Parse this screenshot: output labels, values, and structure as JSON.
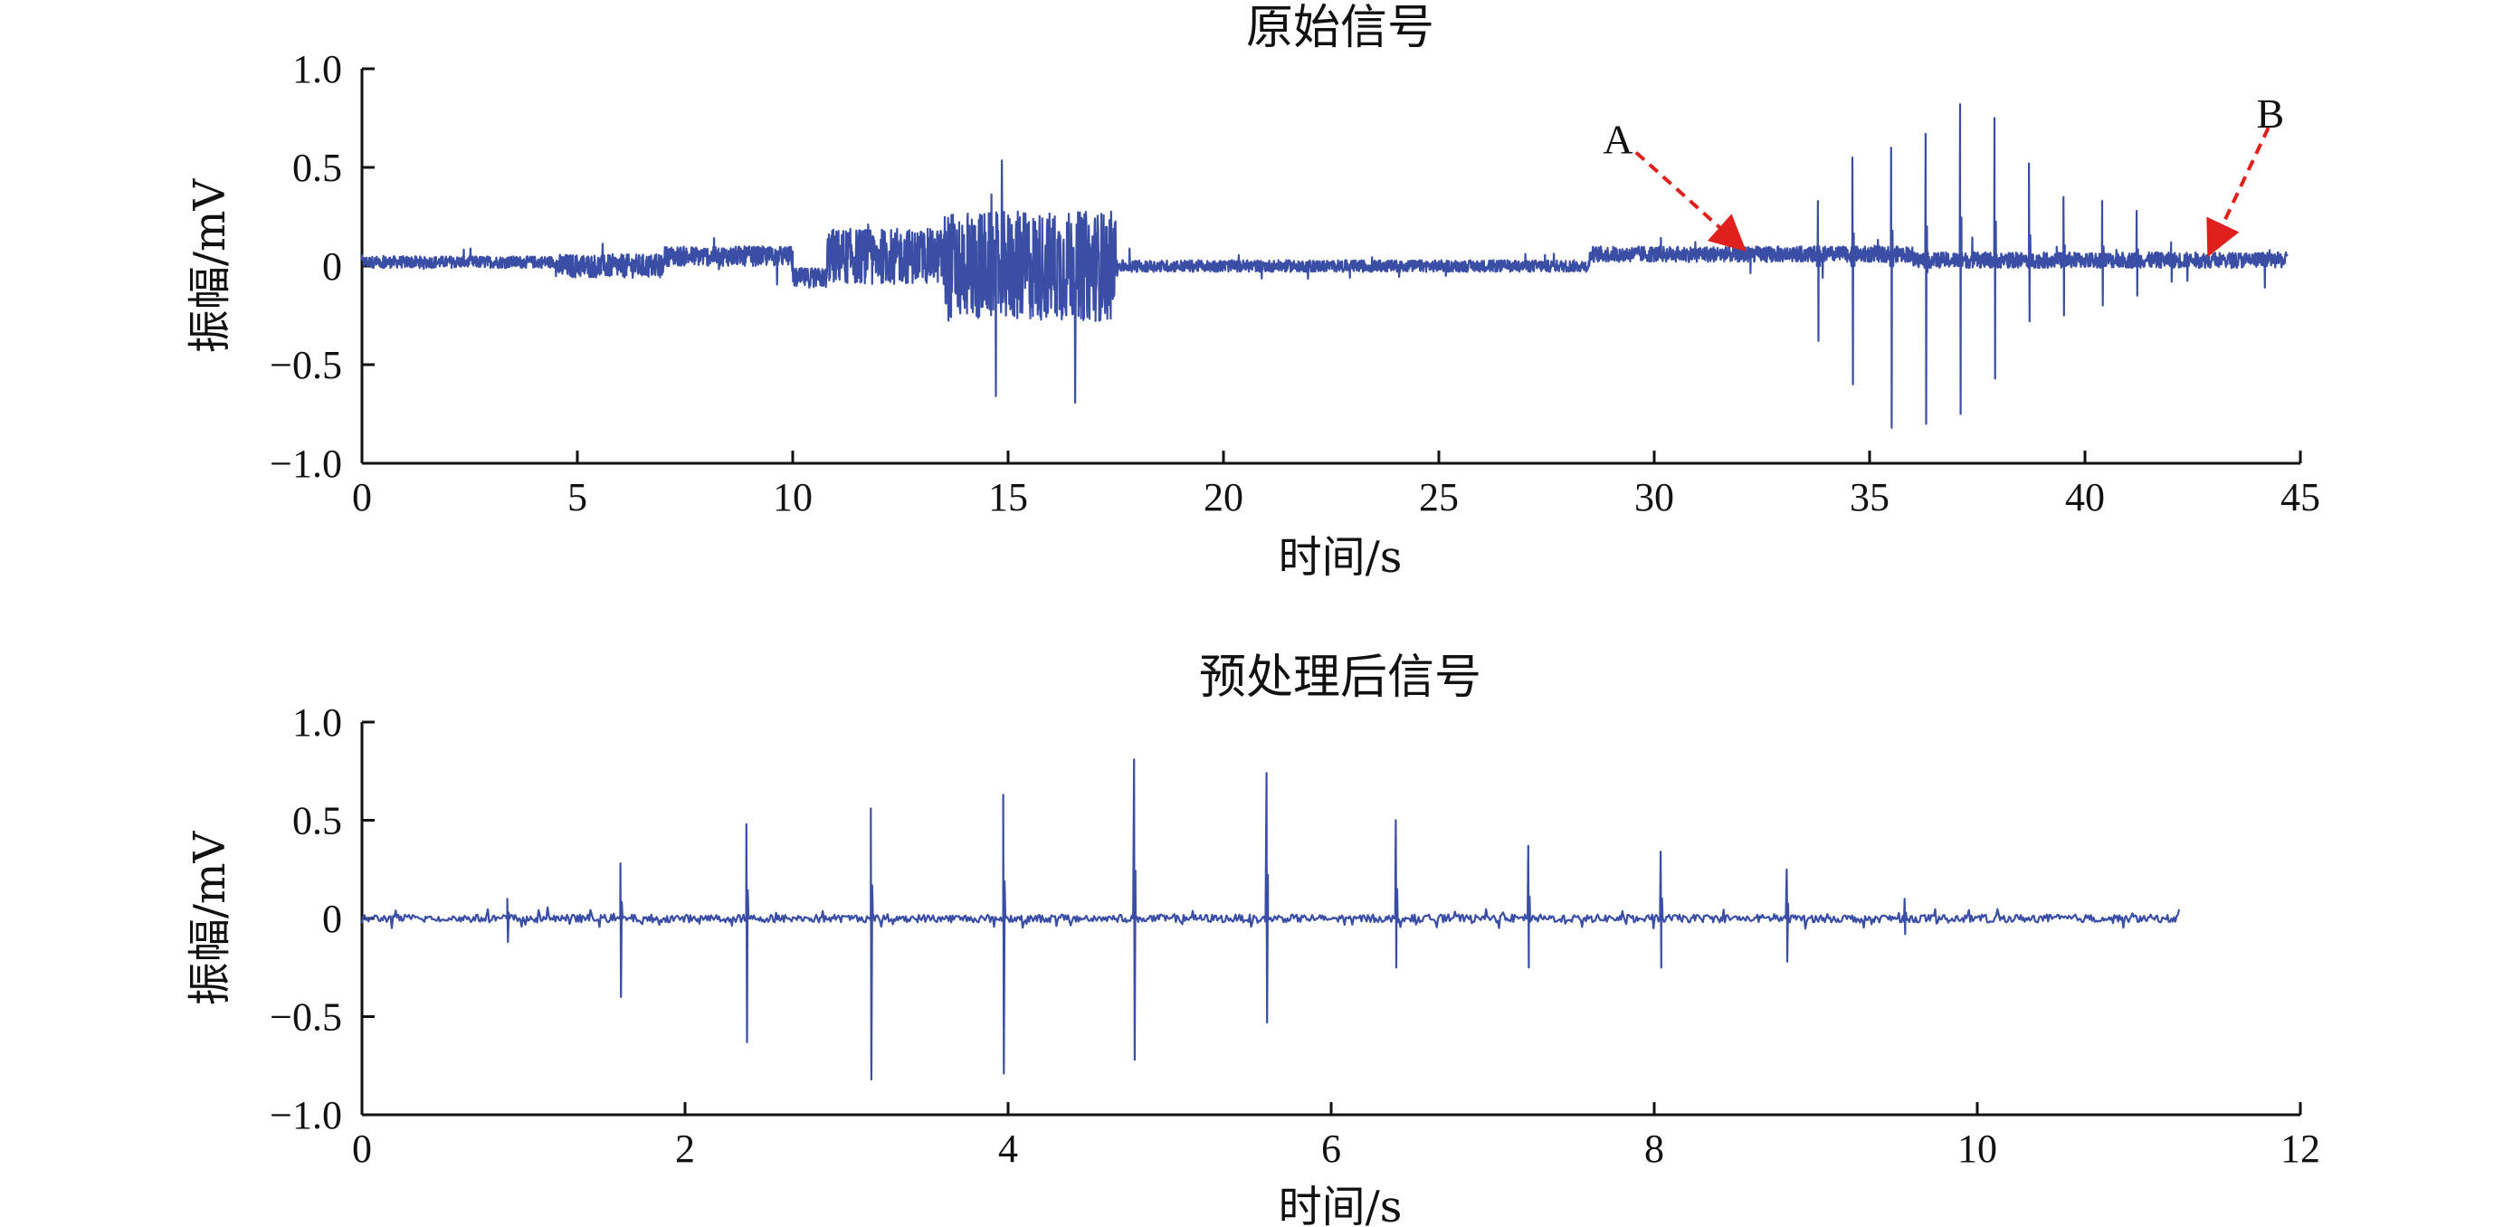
{
  "chart_data": [
    {
      "type": "line",
      "title": "原始信号",
      "xlabel": "时间/s",
      "ylabel": "振幅/mV",
      "xlim": [
        0,
        45
      ],
      "ylim": [
        -1.0,
        1.0
      ],
      "xticks": [
        0,
        5,
        10,
        15,
        20,
        25,
        30,
        35,
        40,
        45
      ],
      "xtick_labels": [
        "0",
        "5",
        "10",
        "15",
        "20",
        "25",
        "30",
        "35",
        "40",
        "45"
      ],
      "yticks": [
        1.0,
        0.5,
        0,
        -0.5,
        -1.0
      ],
      "ytick_labels": [
        "1.0",
        "0.5",
        "0",
        "−0.5",
        "−1.0"
      ],
      "grid": false,
      "series_color": "#3a4ea6",
      "segments": [
        {
          "x_start": 0,
          "x_end": 4.5,
          "level": 0.02,
          "noise": 0.03
        },
        {
          "x_start": 4.5,
          "x_end": 7,
          "level": 0.0,
          "noise": 0.06
        },
        {
          "x_start": 7,
          "x_end": 10,
          "level": 0.05,
          "noise": 0.05
        },
        {
          "x_start": 10,
          "x_end": 10.8,
          "level": -0.06,
          "noise": 0.05
        },
        {
          "x_start": 10.8,
          "x_end": 13.5,
          "level": 0.05,
          "noise": 0.14
        },
        {
          "x_start": 13.5,
          "x_end": 17.5,
          "level": 0.0,
          "noise": 0.28
        },
        {
          "x_start": 17.5,
          "x_end": 28.5,
          "level": 0.0,
          "noise": 0.03
        },
        {
          "x_start": 28.5,
          "x_end": 36,
          "level": 0.06,
          "noise": 0.04
        },
        {
          "x_start": 36,
          "x_end": 44.7,
          "level": 0.03,
          "noise": 0.04
        }
      ],
      "spikes": [
        {
          "x": 33.8,
          "top": 0.33,
          "bottom": -0.38
        },
        {
          "x": 34.6,
          "top": 0.55,
          "bottom": -0.6
        },
        {
          "x": 35.5,
          "top": 0.6,
          "bottom": -0.82
        },
        {
          "x": 36.3,
          "top": 0.67,
          "bottom": -0.8
        },
        {
          "x": 37.1,
          "top": 0.82,
          "bottom": -0.75
        },
        {
          "x": 37.9,
          "top": 0.75,
          "bottom": -0.57
        },
        {
          "x": 38.7,
          "top": 0.52,
          "bottom": -0.28
        },
        {
          "x": 39.5,
          "top": 0.35,
          "bottom": -0.25
        },
        {
          "x": 40.4,
          "top": 0.33,
          "bottom": -0.2
        },
        {
          "x": 41.2,
          "top": 0.28,
          "bottom": -0.15
        },
        {
          "x": 42.0,
          "top": 0.12,
          "bottom": -0.08
        }
      ],
      "annotations": [
        {
          "label": "A",
          "x": 32.1,
          "y": 0.08
        },
        {
          "label": "B",
          "x": 43.0,
          "y": 0.06
        }
      ]
    },
    {
      "type": "line",
      "title": "预处理后信号",
      "xlabel": "时间/s",
      "ylabel": "振幅/mV",
      "xlim": [
        0,
        12
      ],
      "ylim": [
        -1.0,
        1.0
      ],
      "xticks": [
        0,
        2,
        4,
        6,
        8,
        10,
        12
      ],
      "xtick_labels": [
        "0",
        "2",
        "4",
        "6",
        "8",
        "10",
        "12"
      ],
      "yticks": [
        1.0,
        0.5,
        0,
        -0.5,
        -1.0
      ],
      "ytick_labels": [
        "1.0",
        "0.5",
        "0",
        "−0.5",
        "−1.0"
      ],
      "grid": false,
      "series_color": "#3a4ea6",
      "x_end": 11.25,
      "noise": 0.02,
      "spikes": [
        {
          "x": 0.9,
          "top": 0.1,
          "bottom": -0.12
        },
        {
          "x": 1.6,
          "top": 0.28,
          "bottom": -0.4
        },
        {
          "x": 2.38,
          "top": 0.48,
          "bottom": -0.63
        },
        {
          "x": 3.15,
          "top": 0.56,
          "bottom": -0.82
        },
        {
          "x": 3.97,
          "top": 0.63,
          "bottom": -0.79
        },
        {
          "x": 4.78,
          "top": 0.81,
          "bottom": -0.72
        },
        {
          "x": 5.6,
          "top": 0.74,
          "bottom": -0.53
        },
        {
          "x": 6.4,
          "top": 0.5,
          "bottom": -0.25
        },
        {
          "x": 7.22,
          "top": 0.37,
          "bottom": -0.25
        },
        {
          "x": 8.04,
          "top": 0.34,
          "bottom": -0.25
        },
        {
          "x": 8.82,
          "top": 0.25,
          "bottom": -0.22
        },
        {
          "x": 9.55,
          "top": 0.1,
          "bottom": -0.08
        }
      ]
    }
  ]
}
